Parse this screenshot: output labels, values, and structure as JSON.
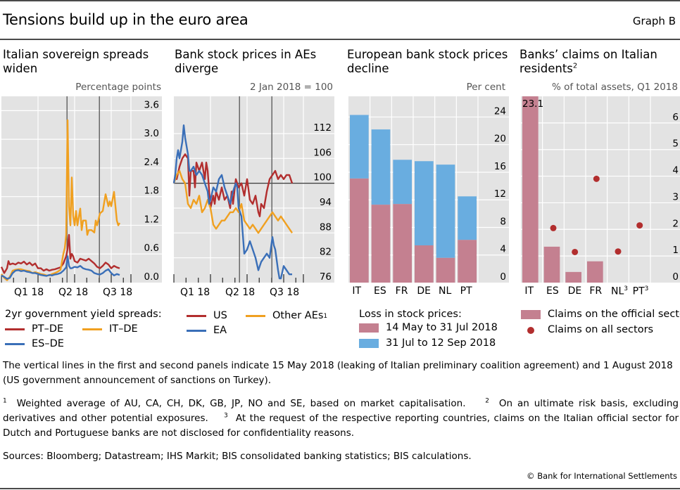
{
  "header": {
    "title": "Tensions build up in the euro area",
    "graph_label": "Graph B"
  },
  "colors": {
    "red": "#b22e2e",
    "orange": "#f0a020",
    "blue": "#3a6fb8",
    "bar_pink": "#c48090",
    "bar_blue": "#69ade0",
    "plot_bg": "#e3e3e3",
    "grid": "#ffffff",
    "dot": "#b22e2e"
  },
  "panels": [
    {
      "title": "Italian sovereign spreads widen",
      "title_sup": "",
      "unit": "Percentage points",
      "x_labels": [
        "Q1 18",
        "Q2 18",
        "Q3 18"
      ],
      "legend_heading": "2yr government yield spreads:",
      "legend": [
        {
          "label": "PT–DE",
          "color_key": "red",
          "sup": ""
        },
        {
          "label": "IT–DE",
          "color_key": "orange",
          "sup": ""
        },
        {
          "label": "ES–DE",
          "color_key": "blue",
          "sup": ""
        }
      ]
    },
    {
      "title": "Bank stock prices in AEs diverge",
      "title_sup": "",
      "unit": "2 Jan 2018 = 100",
      "x_labels": [
        "Q1 18",
        "Q2 18",
        "Q3 18"
      ],
      "legend": [
        {
          "label": "US",
          "color_key": "red",
          "sup": ""
        },
        {
          "label": "Other AEs",
          "color_key": "orange",
          "sup": "1"
        },
        {
          "label": "EA",
          "color_key": "blue",
          "sup": ""
        }
      ]
    },
    {
      "title": "European bank stock prices decline",
      "title_sup": "",
      "unit": "Per cent",
      "legend_heading": "Loss in stock prices:",
      "legend": [
        {
          "label": "14 May to 31 Jul 2018",
          "color_key": "bar_pink"
        },
        {
          "label": "31 Jul to 12 Sep 2018",
          "color_key": "bar_blue"
        }
      ]
    },
    {
      "title": "Banks’ claims on Italian residents",
      "title_sup": "2",
      "unit": "% of total assets, Q1 2018",
      "legend": [
        {
          "label": "Claims on the official sector",
          "type": "box",
          "color_key": "bar_pink"
        },
        {
          "label": "Claims on all sectors",
          "type": "dot",
          "color_key": "dot"
        }
      ]
    }
  ],
  "chart_data": [
    {
      "type": "line",
      "title": "Italian sovereign spreads widen",
      "ylabel": "Percentage points",
      "ylim": [
        0,
        3.9
      ],
      "yticks": [
        "0.0",
        "0.6",
        "1.2",
        "1.8",
        "2.4",
        "3.0",
        "3.6"
      ],
      "ytick_values": [
        0,
        0.6,
        1.2,
        1.8,
        2.4,
        3.0,
        3.6
      ],
      "x_unit": "weeks since start of Dec 2017",
      "xlim": [
        0,
        46
      ],
      "xticks": [
        0,
        4.3,
        8.7,
        13,
        17.3,
        21.7,
        26,
        30.3,
        34.7,
        39,
        43.3
      ],
      "xtick_labels": [
        {
          "label": "Q1 18",
          "x": 6.5
        },
        {
          "label": "Q2 18",
          "x": 19.5
        },
        {
          "label": "Q3 18",
          "x": 32.5
        }
      ],
      "vlines": [
        {
          "x": 23.3,
          "label": "15 May 2018"
        },
        {
          "x": 34.8,
          "label": "1 Aug 2018"
        }
      ],
      "grid": true,
      "series": [
        {
          "name": "PT–DE",
          "color_key": "red",
          "x": [
            0,
            1,
            2,
            2.5,
            3,
            4,
            5,
            6,
            7,
            8,
            9,
            10,
            11,
            12,
            13,
            14,
            15,
            16,
            17,
            18,
            19,
            20,
            21,
            22,
            23,
            23.5,
            24,
            24.5,
            25,
            25.5,
            26,
            27,
            28,
            29,
            30,
            31,
            32,
            33,
            34,
            35,
            36,
            37,
            38,
            39,
            40,
            41,
            42
          ],
          "y": [
            0.33,
            0.2,
            0.3,
            0.45,
            0.38,
            0.4,
            0.38,
            0.42,
            0.4,
            0.44,
            0.38,
            0.42,
            0.36,
            0.4,
            0.3,
            0.3,
            0.25,
            0.28,
            0.25,
            0.27,
            0.28,
            0.3,
            0.32,
            0.4,
            0.55,
            0.7,
            1.0,
            0.5,
            0.6,
            0.55,
            0.45,
            0.42,
            0.5,
            0.48,
            0.46,
            0.5,
            0.45,
            0.4,
            0.33,
            0.3,
            0.35,
            0.42,
            0.38,
            0.3,
            0.35,
            0.32,
            0.3
          ]
        },
        {
          "name": "IT–DE",
          "color_key": "orange",
          "x": [
            0,
            1,
            2,
            3,
            4,
            5,
            6,
            7,
            8,
            9,
            10,
            11,
            12,
            13,
            14,
            15,
            16,
            17,
            18,
            19,
            20,
            21,
            22,
            22.5,
            23,
            23.5,
            24,
            24.5,
            25,
            25.5,
            26,
            26.5,
            27,
            28,
            28.5,
            29,
            30,
            30.5,
            31,
            32,
            33,
            33.5,
            34,
            35,
            36,
            37,
            38,
            38.5,
            39,
            40,
            41,
            41.5,
            42
          ],
          "y": [
            0.18,
            0.1,
            0.05,
            0.12,
            0.25,
            0.27,
            0.28,
            0.28,
            0.26,
            0.25,
            0.24,
            0.2,
            0.22,
            0.2,
            0.18,
            0.17,
            0.15,
            0.15,
            0.18,
            0.2,
            0.23,
            0.27,
            0.6,
            0.72,
            1.0,
            3.4,
            1.6,
            1.2,
            2.2,
            1.4,
            1.2,
            1.5,
            1.2,
            1.55,
            1.1,
            1.3,
            1.3,
            1.0,
            1.1,
            1.1,
            1.05,
            1.3,
            1.2,
            1.45,
            1.5,
            1.85,
            1.6,
            1.7,
            1.6,
            1.9,
            1.3,
            1.2,
            1.25
          ]
        },
        {
          "name": "ES–DE",
          "color_key": "blue",
          "x": [
            0,
            1,
            2,
            3,
            4,
            5,
            6,
            7,
            8,
            9,
            10,
            11,
            12,
            13,
            14,
            15,
            16,
            17,
            18,
            19,
            20,
            21,
            22,
            23,
            23.5,
            24,
            24.5,
            25,
            26,
            27,
            28,
            29,
            30,
            31,
            32,
            33,
            34,
            35,
            36,
            37,
            38,
            39,
            40,
            41,
            42
          ],
          "y": [
            0.15,
            0.12,
            0.08,
            0.1,
            0.2,
            0.25,
            0.26,
            0.24,
            0.25,
            0.23,
            0.22,
            0.2,
            0.2,
            0.18,
            0.16,
            0.15,
            0.14,
            0.16,
            0.15,
            0.17,
            0.18,
            0.2,
            0.25,
            0.32,
            0.55,
            0.35,
            0.3,
            0.3,
            0.33,
            0.32,
            0.35,
            0.3,
            0.28,
            0.27,
            0.25,
            0.2,
            0.18,
            0.17,
            0.2,
            0.25,
            0.28,
            0.2,
            0.15,
            0.18,
            0.16
          ]
        }
      ]
    },
    {
      "type": "line",
      "title": "Bank stock prices in AEs diverge",
      "ylabel": "2 Jan 2018 = 100",
      "ylim": [
        76,
        121
      ],
      "yticks": [
        "76",
        "82",
        "88",
        "94",
        "100",
        "106",
        "112"
      ],
      "ytick_values": [
        76,
        82,
        88,
        94,
        100,
        106,
        112
      ],
      "x_unit": "weeks since start of Dec 2017",
      "xlim": [
        0,
        46
      ],
      "xticks": [
        0,
        4.3,
        8.7,
        13,
        17.3,
        21.7,
        26,
        30.3,
        34.7,
        39,
        43.3
      ],
      "xtick_labels": [
        {
          "label": "Q1 18",
          "x": 6.5
        },
        {
          "label": "Q2 18",
          "x": 19.5
        },
        {
          "label": "Q3 18",
          "x": 32.5
        }
      ],
      "vlines": [
        {
          "x": 23.3,
          "label": "15 May 2018"
        },
        {
          "x": 34.8,
          "label": "1 Aug 2018"
        }
      ],
      "hline": 100,
      "grid": true,
      "series": [
        {
          "name": "US",
          "color_key": "red",
          "x": [
            0,
            0.5,
            1,
            2,
            3,
            4,
            5,
            5.5,
            6,
            7,
            7.5,
            8,
            9,
            10,
            11,
            11.5,
            12,
            13,
            14,
            14.5,
            15,
            16,
            17,
            18,
            19,
            20,
            20.5,
            21,
            22,
            23,
            24,
            25,
            26,
            27,
            28,
            29,
            30,
            30.5,
            31,
            32,
            33,
            34,
            35,
            36,
            37,
            38,
            39,
            40,
            41,
            42
          ],
          "y": [
            100,
            102,
            101,
            104,
            106,
            107,
            106,
            97,
            103,
            103,
            99,
            105,
            103,
            105,
            101,
            105,
            103,
            94,
            97,
            95,
            98,
            96,
            99,
            96,
            97,
            94,
            98,
            95,
            101,
            99,
            100,
            97,
            101,
            96,
            95,
            97,
            93,
            92,
            95,
            94,
            98,
            101,
            102,
            103,
            101,
            102,
            101,
            102,
            102,
            100
          ]
        },
        {
          "name": "Other AEs",
          "color_key": "orange",
          "x": [
            0,
            1,
            2,
            3,
            4,
            5,
            6,
            7,
            8,
            9,
            10,
            11,
            12,
            13,
            14,
            15,
            16,
            17,
            18,
            19,
            20,
            21,
            22,
            23,
            24,
            25,
            26,
            27,
            28,
            29,
            30,
            31,
            32,
            33,
            34,
            35,
            36,
            37,
            38,
            39,
            40,
            41,
            42
          ],
          "y": [
            100,
            102,
            103,
            101,
            100,
            95,
            94,
            96,
            95,
            97,
            93,
            94,
            96,
            94,
            90,
            89,
            90,
            91,
            91,
            92,
            93,
            93,
            94,
            93,
            95,
            91,
            90,
            89,
            90,
            89,
            88,
            89,
            90,
            91,
            92,
            93,
            92,
            91,
            92,
            91,
            90,
            89,
            88
          ]
        },
        {
          "name": "EA",
          "color_key": "blue",
          "x": [
            0,
            0.5,
            1,
            1.5,
            2,
            3,
            3.5,
            4,
            5,
            5.5,
            6,
            7,
            8,
            9,
            10,
            11,
            12,
            12.5,
            13,
            14,
            15,
            16,
            17,
            18,
            19,
            20,
            21,
            22,
            22.5,
            23,
            24,
            25,
            26,
            27,
            28,
            29,
            30,
            31,
            32,
            33,
            34,
            35,
            35.5,
            36,
            37,
            37.5,
            38,
            39,
            40,
            41,
            42
          ],
          "y": [
            100,
            102,
            106,
            108,
            106,
            110,
            114,
            111,
            107,
            103,
            103,
            104,
            102,
            103,
            102,
            100,
            98,
            95,
            96,
            99,
            98,
            101,
            102,
            99,
            97,
            95,
            98,
            100,
            99,
            94,
            92,
            83,
            84,
            86,
            84,
            82,
            79,
            81,
            82,
            83,
            82,
            87,
            85,
            84,
            79,
            77,
            77,
            80,
            79,
            78,
            78
          ]
        }
      ]
    },
    {
      "type": "bar",
      "stacked": true,
      "title": "European bank stock prices decline",
      "ylabel": "Per cent",
      "ylim": [
        0,
        27
      ],
      "yticks": [
        "0",
        "4",
        "8",
        "12",
        "16",
        "20",
        "24"
      ],
      "ytick_values": [
        0,
        4,
        8,
        12,
        16,
        20,
        24
      ],
      "categories": [
        "IT",
        "ES",
        "FR",
        "DE",
        "NL",
        "PT"
      ],
      "grid": true,
      "series": [
        {
          "name": "14 May to 31 Jul 2018",
          "color_key": "bar_pink",
          "values": [
            15.1,
            11.3,
            11.4,
            5.4,
            3.6,
            6.2
          ]
        },
        {
          "name": "31 Jul to 12 Sep 2018",
          "color_key": "bar_blue",
          "values": [
            9.2,
            10.9,
            6.4,
            12.2,
            13.5,
            6.3
          ]
        }
      ]
    },
    {
      "type": "bar",
      "title": "Banks’ claims on Italian residents",
      "ylabel": "% of total assets, Q1 2018",
      "ylim": [
        0,
        7
      ],
      "yticks": [
        "0",
        "1",
        "2",
        "3",
        "4",
        "5",
        "6"
      ],
      "ytick_values": [
        0,
        1,
        2,
        3,
        4,
        5,
        6
      ],
      "categories": [
        "IT",
        "ES",
        "DE",
        "FR",
        "NL",
        "PT"
      ],
      "category_sups": [
        "",
        "",
        "",
        "",
        "3",
        "3"
      ],
      "grid": true,
      "series": [
        {
          "name": "Claims on the official sector",
          "kind": "bar",
          "color_key": "bar_pink",
          "values": [
            23.1,
            1.35,
            0.4,
            0.8,
            null,
            null
          ]
        },
        {
          "name": "Claims on all sectors",
          "kind": "dot",
          "color_key": "dot",
          "values": [
            null,
            2.05,
            1.15,
            3.9,
            1.17,
            2.15
          ]
        }
      ],
      "annotations": [
        {
          "category": "IT",
          "text": "23.1"
        }
      ]
    }
  ],
  "notes": {
    "vertical_lines": "The vertical lines in the first and second panels indicate 15 May 2018 (leaking of Italian preliminary coalition agreement) and 1 August 2018 (US government announcement of sanctions on Turkey).",
    "footnote_1": "Weighted average of AU, CA, CH, DK, GB, JP, NO and SE, based on market capitalisation.",
    "footnote_2": "On an ultimate risk basis, excluding derivatives and other potential exposures.",
    "footnote_3": "At the request of the respective reporting countries, claims on the Italian official sector for Dutch and Portuguese banks are not disclosed for confidentiality reasons.",
    "sources": "Sources: Bloomberg; Datastream; IHS Markit; BIS consolidated banking statistics; BIS calculations.",
    "copyright": "© Bank for International Settlements"
  }
}
